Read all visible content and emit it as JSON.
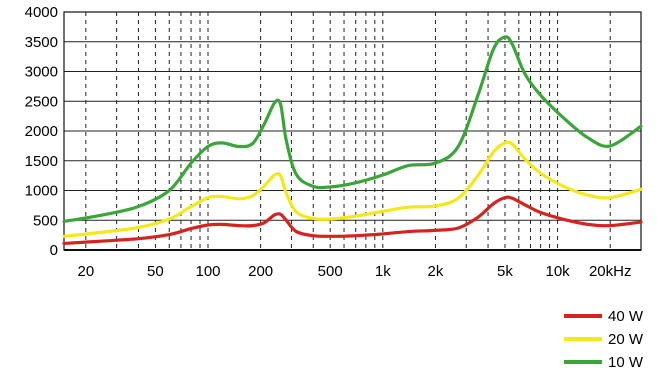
{
  "chart_data": {
    "type": "line",
    "x_scale": "log",
    "x_tick_labels": [
      "20",
      "50",
      "100",
      "200",
      "500",
      "1k",
      "2k",
      "5k",
      "10k",
      "20kHz"
    ],
    "x_tick_values": [
      20,
      50,
      100,
      200,
      500,
      1000,
      2000,
      5000,
      10000,
      20000
    ],
    "xlim": [
      15,
      30000
    ],
    "ylim": [
      0,
      4000
    ],
    "y_ticks": [
      0,
      500,
      1000,
      1500,
      2000,
      2500,
      3000,
      3500,
      4000
    ],
    "grid": true,
    "legend_position": "bottom-right",
    "series": [
      {
        "name": "40 W",
        "color": "#d6231f",
        "x": [
          15,
          25,
          40,
          60,
          80,
          100,
          120,
          150,
          180,
          210,
          240,
          260,
          280,
          320,
          400,
          500,
          700,
          1000,
          1400,
          2000,
          2700,
          3500,
          4300,
          5000,
          5500,
          6500,
          8000,
          11000,
          15000,
          20000,
          30000
        ],
        "y": [
          110,
          150,
          190,
          260,
          360,
          420,
          430,
          410,
          410,
          460,
          590,
          600,
          500,
          310,
          240,
          230,
          240,
          270,
          310,
          330,
          370,
          550,
          780,
          880,
          870,
          760,
          630,
          510,
          430,
          410,
          470
        ]
      },
      {
        "name": "20 W",
        "color": "#f4e81b",
        "x": [
          15,
          25,
          40,
          60,
          80,
          100,
          120,
          150,
          180,
          210,
          240,
          260,
          280,
          320,
          400,
          500,
          700,
          1000,
          1400,
          2000,
          2700,
          3500,
          4300,
          5000,
          5500,
          6500,
          8000,
          11000,
          15000,
          20000,
          30000
        ],
        "y": [
          230,
          300,
          380,
          520,
          730,
          880,
          900,
          860,
          910,
          1080,
          1260,
          1250,
          960,
          640,
          530,
          520,
          570,
          650,
          720,
          740,
          870,
          1250,
          1650,
          1800,
          1780,
          1530,
          1290,
          1060,
          920,
          880,
          1020
        ]
      },
      {
        "name": "10 W",
        "color": "#3aa63a",
        "x": [
          15,
          25,
          40,
          60,
          80,
          100,
          120,
          150,
          180,
          210,
          240,
          260,
          280,
          320,
          400,
          500,
          700,
          1000,
          1400,
          2000,
          2700,
          3500,
          4300,
          5000,
          5500,
          6500,
          8000,
          11000,
          15000,
          20000,
          30000
        ],
        "y": [
          480,
          590,
          730,
          1000,
          1460,
          1740,
          1800,
          1740,
          1790,
          2120,
          2470,
          2450,
          1850,
          1270,
          1070,
          1060,
          1130,
          1260,
          1420,
          1460,
          1740,
          2600,
          3380,
          3580,
          3460,
          2960,
          2600,
          2200,
          1880,
          1750,
          2080
        ]
      }
    ]
  }
}
